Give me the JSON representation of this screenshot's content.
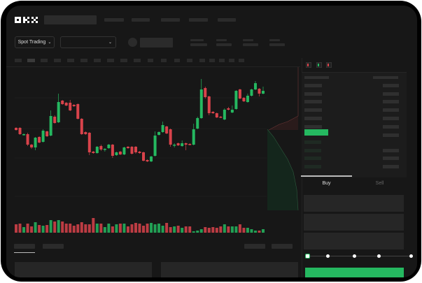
{
  "header": {
    "logo": "OKX"
  },
  "toolbar": {
    "market_select_label": "Spot Trading",
    "chevron": "chevron-down-icon"
  },
  "trade_panel": {
    "tabs": [
      {
        "label": "Buy",
        "active": true
      },
      {
        "label": "Sell",
        "active": false
      }
    ],
    "slider_level_percent": 0,
    "submit_color": "#25b860"
  },
  "colors": {
    "up": "#25b860",
    "down": "#d9434b",
    "background": "#171717"
  },
  "chart_data": {
    "type": "candlestick",
    "candles": [
      [
        68,
        65,
        69,
        64
      ],
      [
        68,
        59,
        69,
        58
      ],
      [
        58,
        59,
        60,
        57
      ],
      [
        59,
        44,
        61,
        42
      ],
      [
        44,
        40,
        45,
        38
      ],
      [
        40,
        54,
        55,
        36
      ],
      [
        55,
        47,
        56,
        46
      ],
      [
        48,
        64,
        66,
        47
      ],
      [
        63,
        56,
        64,
        55
      ],
      [
        57,
        85,
        93,
        56
      ],
      [
        84,
        75,
        86,
        74
      ],
      [
        76,
        105,
        117,
        75
      ],
      [
        107,
        102,
        108,
        101
      ],
      [
        104,
        100,
        105,
        99
      ],
      [
        104,
        93,
        108,
        92
      ],
      [
        101,
        99,
        102,
        98
      ],
      [
        102,
        81,
        103,
        80
      ],
      [
        81,
        59,
        82,
        58
      ],
      [
        62,
        59,
        63,
        58
      ],
      [
        61,
        33,
        62,
        29
      ],
      [
        34,
        32,
        35,
        31
      ],
      [
        32,
        41,
        42,
        31
      ],
      [
        42,
        37,
        44,
        35
      ],
      [
        37,
        38,
        39,
        34
      ],
      [
        39,
        44,
        45,
        38
      ],
      [
        44,
        28,
        45,
        25
      ],
      [
        29,
        33,
        34,
        28
      ],
      [
        34,
        30,
        35,
        29
      ],
      [
        30,
        40,
        41,
        29
      ],
      [
        41,
        39,
        42,
        38
      ],
      [
        41,
        31,
        42,
        30
      ],
      [
        41,
        33,
        42,
        31
      ],
      [
        34,
        32,
        35,
        31
      ],
      [
        33,
        21,
        34,
        20
      ],
      [
        22,
        20,
        23,
        19
      ],
      [
        20,
        27,
        28,
        19
      ],
      [
        28,
        57,
        63,
        27
      ],
      [
        58,
        62,
        63,
        57
      ],
      [
        62,
        72,
        77,
        61
      ],
      [
        70,
        60,
        71,
        59
      ],
      [
        66,
        44,
        67,
        41
      ],
      [
        43,
        44,
        46,
        40
      ],
      [
        46,
        43,
        47,
        42
      ],
      [
        42,
        46,
        50,
        41
      ],
      [
        46,
        44,
        47,
        36
      ],
      [
        45,
        44,
        46,
        43
      ],
      [
        44,
        66,
        74,
        43
      ],
      [
        67,
        82,
        84,
        66
      ],
      [
        82,
        123,
        138,
        81
      ],
      [
        125,
        112,
        127,
        110
      ],
      [
        113,
        89,
        114,
        86
      ],
      [
        91,
        89,
        92,
        88
      ],
      [
        89,
        83,
        90,
        82
      ],
      [
        84,
        83,
        85,
        82
      ],
      [
        80,
        94,
        96,
        79
      ],
      [
        96,
        94,
        98,
        93
      ],
      [
        90,
        94,
        100,
        89
      ],
      [
        95,
        121,
        122,
        94
      ],
      [
        123,
        110,
        124,
        109
      ],
      [
        111,
        106,
        112,
        105
      ],
      [
        105,
        114,
        117,
        104
      ],
      [
        114,
        123,
        124,
        113
      ],
      [
        123,
        132,
        135,
        122
      ],
      [
        124,
        117,
        125,
        113
      ],
      [
        117,
        121,
        127,
        116
      ]
    ],
    "volumes": [
      12,
      13,
      8,
      13,
      9,
      15,
      11,
      10,
      11,
      18,
      16,
      18,
      16,
      13,
      13,
      10,
      12,
      15,
      12,
      12,
      21,
      13,
      13,
      8,
      13,
      9,
      12,
      13,
      13,
      9,
      12,
      14,
      13,
      10,
      13,
      14,
      12,
      13,
      10,
      14,
      8,
      9,
      10,
      7,
      9,
      9,
      2,
      3,
      5,
      8,
      7,
      8,
      7,
      9,
      12,
      9,
      9,
      9,
      12,
      7,
      7,
      5,
      3,
      3,
      5
    ]
  }
}
